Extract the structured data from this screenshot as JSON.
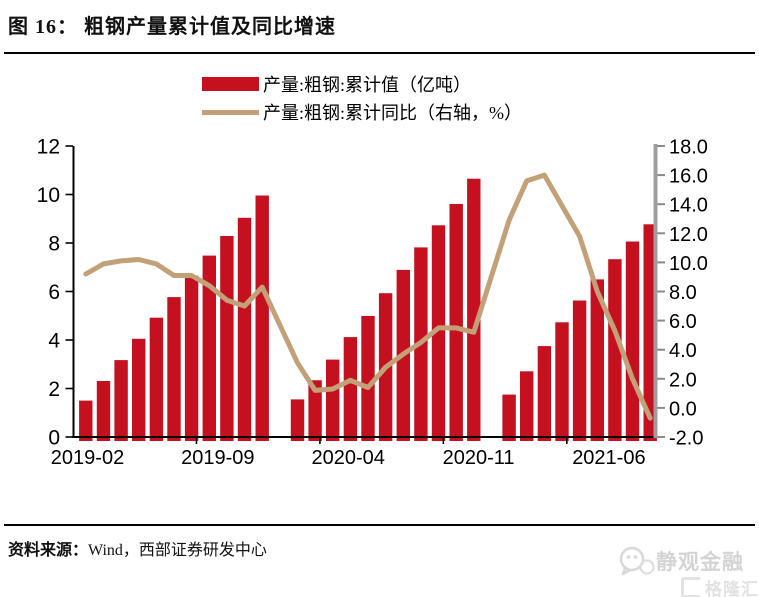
{
  "page": {
    "title": "图 16： 粗钢产量累计值及同比增速",
    "source": {
      "label": "资料来源：",
      "text": "Wind，西部证券研发中心"
    },
    "watermark": {
      "name": "静观金融",
      "logo": "格隆汇"
    }
  },
  "chart_data": {
    "type": "combo-bar-line",
    "title": "粗钢产量累计值及同比增速",
    "categories": [
      "2019-02",
      "2019-03",
      "2019-04",
      "2019-05",
      "2019-06",
      "2019-07",
      "2019-08",
      "2019-09",
      "2019-10",
      "2019-11",
      "2019-12",
      "2020-01",
      "2020-02",
      "2020-03",
      "2020-04",
      "2020-05",
      "2020-06",
      "2020-07",
      "2020-08",
      "2020-09",
      "2020-10",
      "2020-11",
      "2020-12",
      "2021-01",
      "2021-02",
      "2021-03",
      "2021-04",
      "2021-05",
      "2021-06",
      "2021-07",
      "2021-08",
      "2021-09",
      "2021-10"
    ],
    "series": [
      {
        "name": "产量:粗钢:累计值（亿吨）",
        "type": "bar",
        "axis": "left",
        "color": "#C5101F",
        "values": [
          1.5,
          2.31,
          3.17,
          4.05,
          4.92,
          5.77,
          6.65,
          7.48,
          8.29,
          9.04,
          9.96,
          null,
          1.55,
          2.34,
          3.19,
          4.12,
          4.99,
          5.93,
          6.89,
          7.82,
          8.73,
          9.61,
          10.65,
          null,
          1.75,
          2.71,
          3.75,
          4.73,
          5.63,
          6.5,
          7.33,
          8.06,
          8.77
        ]
      },
      {
        "name": "产量:粗钢:累计同比（右轴，%）",
        "type": "line",
        "axis": "right",
        "color": "#C3A178",
        "values": [
          9.2,
          9.9,
          10.1,
          10.2,
          9.9,
          9.1,
          9.1,
          8.4,
          7.4,
          7.0,
          8.3,
          null,
          3.1,
          1.2,
          1.3,
          1.9,
          1.4,
          2.8,
          3.7,
          4.5,
          5.5,
          5.5,
          5.2,
          null,
          12.9,
          15.6,
          16.0,
          13.9,
          11.8,
          8.0,
          5.3,
          2.0,
          -0.7
        ]
      }
    ],
    "left_axis": {
      "min": 0,
      "max": 12,
      "tick_labels": [
        "0",
        "2",
        "4",
        "6",
        "8",
        "10",
        "12"
      ]
    },
    "right_axis": {
      "min": -2,
      "max": 18,
      "tick_labels": [
        "-2.0",
        "0.0",
        "2.0",
        "4.0",
        "6.0",
        "8.0",
        "10.0",
        "12.0",
        "14.0",
        "16.0",
        "18.0"
      ]
    },
    "x_ticks": [
      {
        "index": 0,
        "label": "2019-02"
      },
      {
        "index": 7,
        "label": "2019-09"
      },
      {
        "index": 14,
        "label": "2020-04"
      },
      {
        "index": 21,
        "label": "2020-11"
      },
      {
        "index": 28,
        "label": "2021-06"
      }
    ],
    "grid": false,
    "legend_position": "top-center"
  }
}
